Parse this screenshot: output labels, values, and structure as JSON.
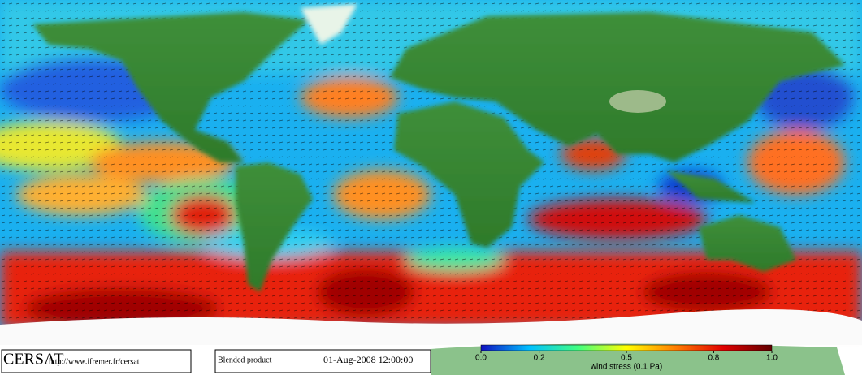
{
  "footer": {
    "logo": "CERSAT",
    "url": "http://www.ifremer.fr/cersat",
    "product": "Blended product",
    "date": "01-Aug-2008 12:00:00"
  },
  "colorbar": {
    "label": "wind stress (0.1 Pa)",
    "clim": [
      0,
      1
    ],
    "ticks": [
      {
        "value": 0,
        "label": "0.0"
      },
      0.2,
      0.5,
      0.8,
      {
        "value": 1,
        "label": "1.0"
      }
    ],
    "colors": [
      "#1010c0",
      "#00c0ff",
      "#40ff80",
      "#ffff00",
      "#ff8000",
      "#e00000",
      "#600000"
    ]
  }
}
